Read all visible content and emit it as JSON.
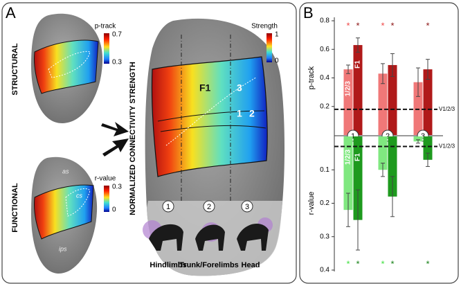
{
  "panel_labels": [
    "A",
    "B"
  ],
  "panel_a": {
    "structural": {
      "label": "STRUCTURAL",
      "colorbar_title": "p-track",
      "colorbar_max": "0.7",
      "colorbar_min": "0.3"
    },
    "functional": {
      "label": "FUNCTIONAL",
      "colorbar_title": "r-value",
      "colorbar_max": "0.3",
      "colorbar_min": "0",
      "sulci": [
        "as",
        "cs",
        "ips"
      ]
    },
    "main": {
      "axis_title": "NORMALIZED CONNECTIVITY STRENGTH",
      "colorbar_title": "Strength",
      "colorbar_max": "1",
      "colorbar_min": "0",
      "area_labels": [
        "F1",
        "3",
        "1",
        "2"
      ],
      "regions": [
        {
          "number": "1",
          "label": "Hindlimbs"
        },
        {
          "number": "2",
          "label": "Trunk/Forelimbs"
        },
        {
          "number": "3",
          "label": "Head"
        }
      ]
    }
  },
  "chart_data": [
    {
      "type": "bar",
      "ylabel": "p-track",
      "categories": [
        "1",
        "2",
        "3"
      ],
      "series": [
        {
          "name": "1/2/3",
          "color": "#f07878",
          "marker_color": "#f04848",
          "values": [
            0.46,
            0.43,
            0.37
          ],
          "errors": [
            0.03,
            0.07,
            0.1
          ],
          "markers": [
            "*",
            "*",
            null
          ]
        },
        {
          "name": "F1",
          "color": "#b01a1a",
          "marker_color": "#8a1010",
          "values": [
            0.63,
            0.49,
            0.46
          ],
          "errors": [
            0.05,
            0.08,
            0.07
          ],
          "markers": [
            "*",
            "*",
            "*"
          ]
        }
      ],
      "ylim": [
        0,
        0.8
      ],
      "yticks": [
        0.2,
        0.4,
        0.6,
        0.8
      ],
      "reference_line": {
        "label": "V1/2/3",
        "value": 0.18
      }
    },
    {
      "type": "bar",
      "ylabel": "r-value",
      "inverted": true,
      "series": [
        {
          "name": "1/2/3",
          "color": "#80e880",
          "marker_color": "#40e040",
          "values": [
            0.22,
            0.1,
            0.015
          ],
          "errors": [
            0.05,
            0.02,
            0.005
          ],
          "markers": [
            "*",
            "*",
            null
          ]
        },
        {
          "name": "F1",
          "color": "#1e9a1e",
          "marker_color": "#158015",
          "values": [
            0.25,
            0.18,
            0.07
          ],
          "errors": [
            0.09,
            0.06,
            0.02
          ],
          "markers": [
            "*",
            "*",
            "*"
          ]
        }
      ],
      "ylim": [
        0,
        0.4
      ],
      "yticks": [
        0.1,
        0.2,
        0.3,
        0.4
      ],
      "reference_line": {
        "label": "V1/2/3",
        "value": 0.03
      }
    }
  ]
}
